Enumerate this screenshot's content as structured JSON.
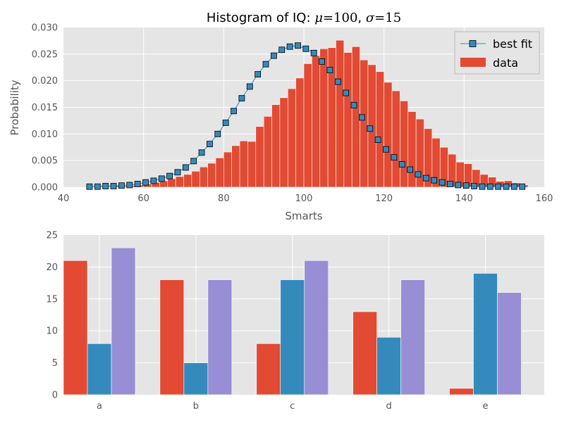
{
  "chart_data": [
    {
      "type": "bar",
      "subtype": "histogram_with_fit_line",
      "title": "Histogram of IQ: μ=100, σ=15",
      "title_parts": {
        "prefix": "Histogram of IQ: ",
        "mu_symbol": "μ",
        "mu_value": "=100",
        "sep": ", ",
        "sigma_symbol": "σ",
        "sigma_value": "=15"
      },
      "xlabel": "Smarts",
      "ylabel": "Probability",
      "xlim": [
        40,
        160
      ],
      "ylim": [
        0,
        0.03
      ],
      "xticks": [
        40,
        60,
        80,
        100,
        120,
        140,
        160
      ],
      "yticks": [
        0.0,
        0.005,
        0.01,
        0.015,
        0.02,
        0.025,
        0.03
      ],
      "xtick_labels": [
        "40",
        "60",
        "80",
        "100",
        "120",
        "140",
        "160"
      ],
      "ytick_labels": [
        "0.000",
        "0.005",
        "0.010",
        "0.015",
        "0.020",
        "0.025",
        "0.030"
      ],
      "grid": true,
      "legend": {
        "placement": "top-right",
        "entries": [
          "best fit",
          "data"
        ]
      },
      "series": [
        {
          "name": "data",
          "kind": "bar",
          "color": "#E24A33",
          "bins_start": 46.0,
          "bin_width": 2.0,
          "values": [
            0.0001,
            0.0001,
            0.0001,
            0.0002,
            0.0002,
            0.0003,
            0.0004,
            0.0006,
            0.0009,
            0.0012,
            0.0016,
            0.002,
            0.0024,
            0.003,
            0.0038,
            0.0045,
            0.0055,
            0.0066,
            0.0078,
            0.0087,
            0.0086,
            0.0114,
            0.0133,
            0.0155,
            0.0168,
            0.0185,
            0.0205,
            0.0232,
            0.0247,
            0.026,
            0.0262,
            0.0276,
            0.0253,
            0.0264,
            0.0239,
            0.023,
            0.0217,
            0.0197,
            0.0181,
            0.0162,
            0.0142,
            0.0128,
            0.011,
            0.0092,
            0.0075,
            0.0062,
            0.0047,
            0.0044,
            0.0033,
            0.0024,
            0.0019,
            0.0011,
            0.0012,
            0.0008,
            0.0004
          ]
        },
        {
          "name": "best fit",
          "kind": "line",
          "marker": "square",
          "color": "#348ABD",
          "x": [
            46.5,
            48.5,
            50.5,
            52.5,
            54.5,
            56.5,
            58.5,
            60.5,
            62.5,
            64.5,
            66.5,
            68.5,
            70.5,
            72.5,
            74.5,
            76.5,
            78.5,
            80.5,
            82.5,
            84.5,
            86.5,
            88.5,
            90.5,
            92.5,
            94.5,
            96.5,
            98.5,
            100.5,
            102.5,
            104.5,
            106.5,
            108.5,
            110.5,
            112.5,
            114.5,
            116.5,
            118.5,
            120.5,
            122.5,
            124.5,
            126.5,
            128.5,
            130.5,
            132.5,
            134.5,
            136.5,
            138.5,
            140.5,
            142.5,
            144.5,
            146.5,
            148.5,
            150.5,
            152.5,
            154.5
          ],
          "values": [
            0.0001,
            0.0001,
            0.0002,
            0.0002,
            0.0003,
            0.0004,
            0.0006,
            0.0009,
            0.0012,
            0.0016,
            0.0021,
            0.0028,
            0.0037,
            0.0049,
            0.0065,
            0.0081,
            0.01,
            0.0121,
            0.0143,
            0.0167,
            0.0189,
            0.0212,
            0.0231,
            0.0247,
            0.0258,
            0.0264,
            0.0266,
            0.026,
            0.0252,
            0.0236,
            0.022,
            0.0198,
            0.0177,
            0.0154,
            0.0131,
            0.011,
            0.0089,
            0.0071,
            0.0056,
            0.0043,
            0.0033,
            0.0024,
            0.0017,
            0.0013,
            0.0009,
            0.0006,
            0.0004,
            0.0003,
            0.0002,
            0.0001,
            0.0001,
            0.0001,
            0.0001,
            0.0001,
            0.0001
          ]
        }
      ]
    },
    {
      "type": "bar",
      "subtype": "grouped",
      "title": "",
      "xlabel": "",
      "ylabel": "",
      "categories": [
        "a",
        "b",
        "c",
        "d",
        "e"
      ],
      "ylim": [
        0,
        25
      ],
      "yticks": [
        0,
        5,
        10,
        15,
        20,
        25
      ],
      "ytick_labels": [
        "0",
        "5",
        "10",
        "15",
        "20",
        "25"
      ],
      "grid": true,
      "series": [
        {
          "color": "#E24A33",
          "values": [
            21,
            18,
            8,
            13,
            1
          ]
        },
        {
          "color": "#348ABD",
          "values": [
            8,
            5,
            18,
            9,
            19
          ]
        },
        {
          "color": "#988ED5",
          "values": [
            23,
            18,
            21,
            18,
            16
          ]
        }
      ]
    }
  ],
  "colors": {
    "plot_background": "#E5E5E5",
    "grid": "#FFFFFF",
    "tick_text": "#555555"
  }
}
